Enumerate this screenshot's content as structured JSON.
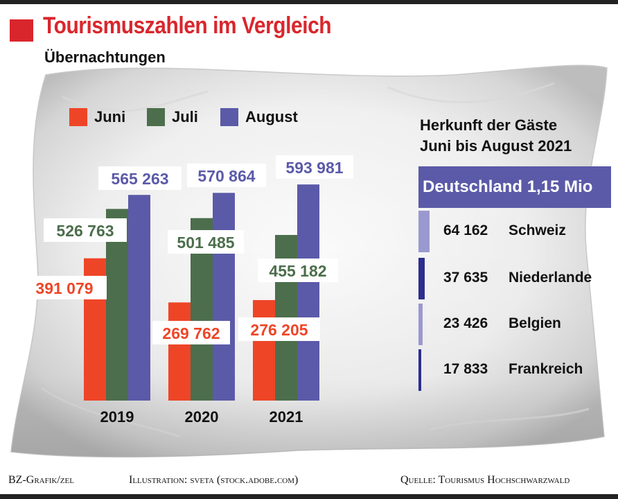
{
  "title": "Tourismuszahlen im Vergleich",
  "subtitle": "Übernachtungen",
  "colors": {
    "juni": "#ee4527",
    "juli": "#4c6e4c",
    "august": "#5b5aa8",
    "title_red": "#d9262c"
  },
  "chart_data": [
    {
      "type": "bar",
      "title": "Tourismuszahlen im Vergleich",
      "subtitle": "Übernachtungen",
      "categories": [
        "2019",
        "2020",
        "2021"
      ],
      "series": [
        {
          "name": "Juni",
          "color": "#ee4527",
          "values": [
            391079,
            269762,
            276205
          ],
          "labels": [
            "391 079",
            "269 762",
            "276 205"
          ]
        },
        {
          "name": "Juli",
          "color": "#4c6e4c",
          "values": [
            526763,
            501485,
            455182
          ],
          "labels": [
            "526 763",
            "501 485",
            "455 182"
          ]
        },
        {
          "name": "August",
          "color": "#5b5aa8",
          "values": [
            565263,
            570864,
            593981
          ],
          "labels": [
            "565 263",
            "570 864",
            "593 981"
          ]
        }
      ],
      "legend": "top-left",
      "grid": false
    },
    {
      "type": "bar",
      "title": "Herkunft der Gäste Juni bis August 2021",
      "categories": [
        "Deutschland",
        "Schweiz",
        "Niederlande",
        "Belgien",
        "Frankreich"
      ],
      "values": [
        1150000,
        64162,
        37635,
        23426,
        17833
      ],
      "labels": [
        "Deutschland 1,15 Mio",
        "64 162",
        "37 635",
        "23 426",
        "17 833"
      ],
      "colors": [
        "#5b5aa8",
        "#9a99cf",
        "#2e2d8f",
        "#9a99cf",
        "#2e2d8f"
      ]
    }
  ],
  "legend": {
    "items": [
      {
        "label": "Juni",
        "color": "#ee4527"
      },
      {
        "label": "Juli",
        "color": "#4c6e4c"
      },
      {
        "label": "August",
        "color": "#5b5aa8"
      }
    ]
  },
  "origin": {
    "title_line1": "Herkunft der Gäste",
    "title_line2": "Juni bis August 2021",
    "headline": "Deutschland 1,15 Mio",
    "rows": [
      {
        "value": "64 162",
        "country": "Schweiz",
        "color": "#9a99cf"
      },
      {
        "value": "37 635",
        "country": "Niederlande",
        "color": "#2e2d8f"
      },
      {
        "value": "23 426",
        "country": "Belgien",
        "color": "#9a99cf"
      },
      {
        "value": "17 833",
        "country": "Frankreich",
        "color": "#2e2d8f"
      }
    ]
  },
  "footer": {
    "left": "BZ-Grafik/zel",
    "center": "Illustration: sveta (stock.adobe.com)",
    "right": "Quelle: Tourismus Hochschwarzwald"
  }
}
